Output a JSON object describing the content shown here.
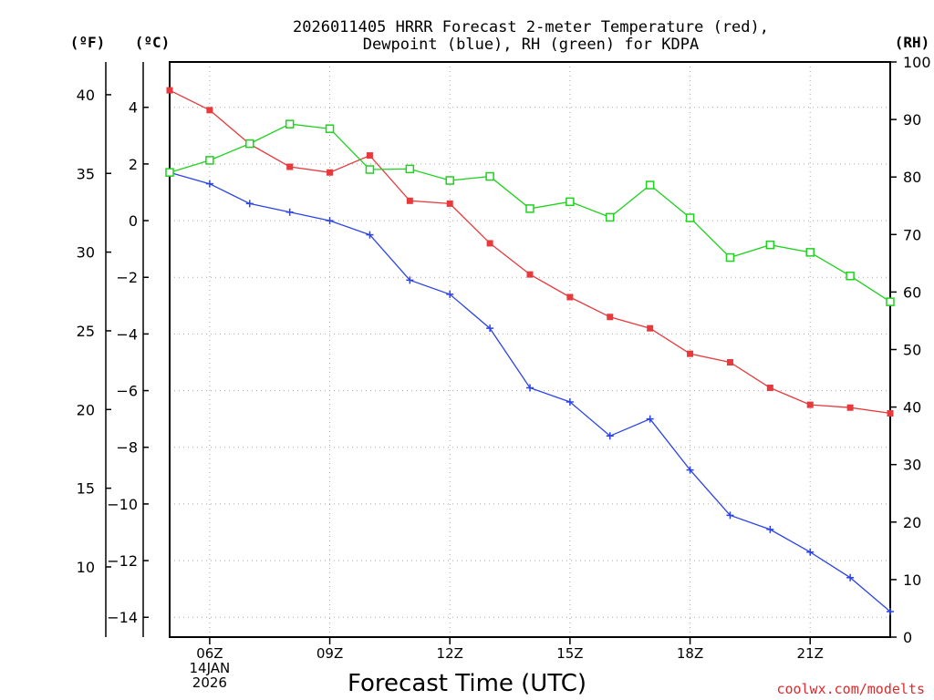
{
  "chart_data": {
    "type": "line",
    "title": [
      "2026011405 HRRR Forecast 2-meter Temperature (red),",
      "Dewpoint (blue), RH (green) for KDPA"
    ],
    "xlabel": "Forecast Time (UTC)",
    "x_hours": [
      5,
      6,
      7,
      8,
      9,
      10,
      11,
      12,
      13,
      14,
      15,
      16,
      17,
      18,
      19,
      20,
      21,
      22,
      23
    ],
    "x_ticks": [
      {
        "hour": 6,
        "lines": [
          "06Z",
          "14JAN",
          "2026"
        ]
      },
      {
        "hour": 9,
        "lines": [
          "09Z"
        ]
      },
      {
        "hour": 12,
        "lines": [
          "12Z"
        ]
      },
      {
        "hour": 15,
        "lines": [
          "15Z"
        ]
      },
      {
        "hour": 18,
        "lines": [
          "18Z"
        ]
      },
      {
        "hour": 21,
        "lines": [
          "21Z"
        ]
      }
    ],
    "xlim": [
      5,
      23
    ],
    "axes": {
      "fahrenheit": {
        "label": "(ºF)",
        "ticks": [
          10,
          15,
          20,
          25,
          30,
          35,
          40
        ]
      },
      "celsius": {
        "label": "(ºC)",
        "ticks": [
          -14,
          -12,
          -10,
          -8,
          -6,
          -4,
          -2,
          0,
          2,
          4
        ],
        "ylim": [
          -14.7,
          5.6
        ]
      },
      "rh": {
        "label": "(RH)",
        "ticks": [
          0,
          10,
          20,
          30,
          40,
          50,
          60,
          70,
          80,
          90,
          100
        ],
        "ylim": [
          0,
          100
        ]
      }
    },
    "series": [
      {
        "name": "Temperature",
        "unit": "C",
        "color": "#e8393c",
        "marker": "filled-square",
        "values": [
          4.6,
          3.9,
          2.7,
          1.9,
          1.7,
          2.3,
          0.7,
          0.6,
          -0.8,
          -1.9,
          -2.7,
          -3.4,
          -3.8,
          -4.7,
          -5.0,
          -5.9,
          -6.5,
          -6.6,
          -6.8
        ]
      },
      {
        "name": "Dewpoint",
        "unit": "C",
        "color": "#2b43e8",
        "marker": "plus",
        "values": [
          1.7,
          1.3,
          0.6,
          0.3,
          0.0,
          -0.5,
          -2.1,
          -2.6,
          -3.8,
          -5.9,
          -6.4,
          -7.6,
          -7.0,
          -8.8,
          -10.4,
          -10.9,
          -11.7,
          -12.6,
          -13.8
        ]
      },
      {
        "name": "RH",
        "unit": "%",
        "color": "#1ed21e",
        "marker": "open-square",
        "values": [
          80.8,
          82.9,
          85.8,
          89.2,
          88.4,
          81.3,
          81.4,
          79.4,
          80.1,
          74.5,
          75.7,
          73.0,
          78.6,
          72.9,
          66.0,
          68.2,
          66.9,
          62.8,
          58.3
        ]
      }
    ],
    "credit": "coolwx.com/modelts"
  }
}
